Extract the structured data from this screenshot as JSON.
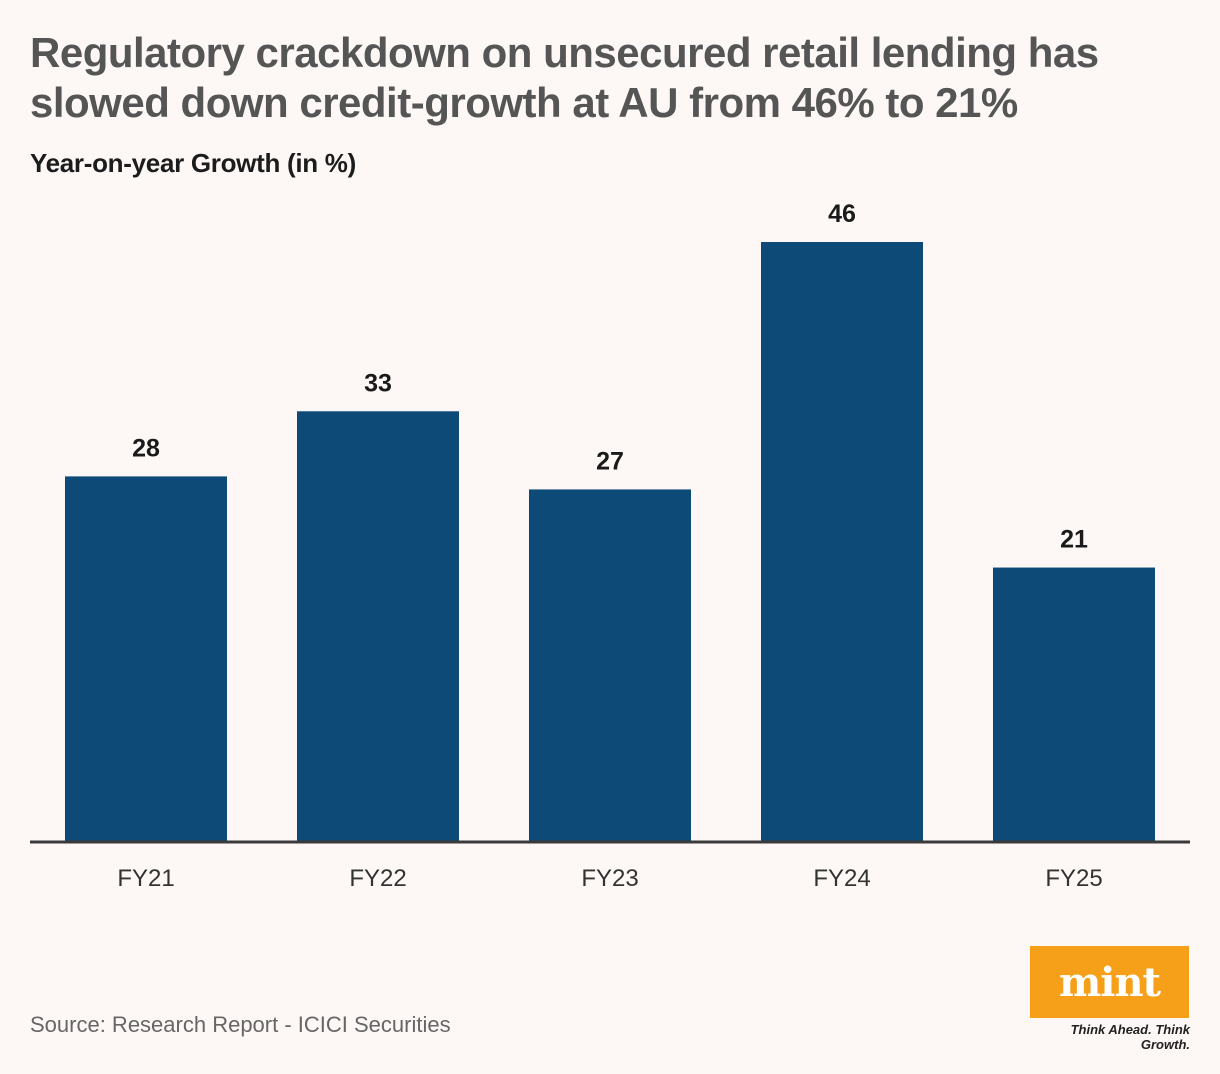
{
  "header": {
    "title": "Regulatory crackdown on unsecured retail lending has slowed down credit-growth at AU from 46% to 21%",
    "subtitle": "Year-on-year Growth (in %)"
  },
  "footer": {
    "source": "Source: Research Report - ICICI Securities",
    "logo_text": "mint",
    "logo_tagline": "Think Ahead. Think Growth."
  },
  "colors": {
    "background": "#fdf8f6",
    "bar": "#0e4a78",
    "axis": "#3a3a3a",
    "logo_bg": "#f6a01a"
  },
  "chart_data": {
    "type": "bar",
    "title": "Regulatory crackdown on unsecured retail lending has slowed down credit-growth at AU from 46% to 21%",
    "ylabel": "Year-on-year Growth (in %)",
    "xlabel": "",
    "categories": [
      "FY21",
      "FY22",
      "FY23",
      "FY24",
      "FY25"
    ],
    "values": [
      28,
      33,
      27,
      46,
      21
    ],
    "ylim": [
      0,
      46
    ],
    "grid": false,
    "legend": "none",
    "data_labels": true
  }
}
